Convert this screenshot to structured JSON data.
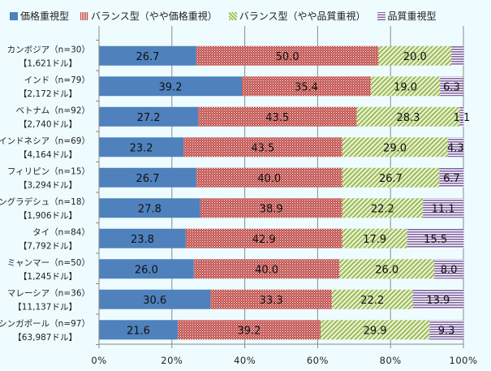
{
  "chart_data": {
    "type": "bar",
    "orientation": "horizontal",
    "stacked": "100%",
    "title": "",
    "xlabel": "",
    "ylabel": "",
    "xlim": [
      0,
      100
    ],
    "x_ticks": [
      "0%",
      "20%",
      "40%",
      "60%",
      "80%",
      "100%"
    ],
    "grid": "vertical",
    "legend_position": "top",
    "categories": [
      {
        "name": "カンボジア（n=30）",
        "sub": "【1,621ドル】"
      },
      {
        "name": "インド（n=79）",
        "sub": "【2,172ドル】"
      },
      {
        "name": "ベトナム（n=92）",
        "sub": "【2,740ドル】"
      },
      {
        "name": "インドネシア（n=69）",
        "sub": "【4,164ドル】"
      },
      {
        "name": "フィリピン（n=15）",
        "sub": "【3,294ドル】"
      },
      {
        "name": "バングラデシュ（n=18）",
        "sub": "【1,906ドル】"
      },
      {
        "name": "タイ（n=84）",
        "sub": "【7,792ドル】"
      },
      {
        "name": "ミャンマー（n=50）",
        "sub": "【1,245ドル】"
      },
      {
        "name": "マレーシア（n=36）",
        "sub": "【11,137ドル】"
      },
      {
        "name": "シンガポール（n=97）",
        "sub": "【63,987ドル】"
      }
    ],
    "series": [
      {
        "name": "価格重視型",
        "color": "#4f81bd",
        "pattern": "solid",
        "values": [
          26.7,
          39.2,
          27.2,
          23.2,
          26.7,
          27.8,
          23.8,
          26.0,
          30.6,
          21.6
        ],
        "labels": [
          "26.7",
          "39.2",
          "27.2",
          "23.2",
          "26.7",
          "27.8",
          "23.8",
          "26.0",
          "30.6",
          "21.6"
        ]
      },
      {
        "name": "バランス型（やや価格重視）",
        "color": "#c0504d",
        "pattern": "dots",
        "values": [
          50.0,
          35.4,
          43.5,
          43.5,
          40.0,
          38.9,
          42.9,
          40.0,
          33.3,
          39.2
        ],
        "labels": [
          "50.0",
          "35.4",
          "43.5",
          "43.5",
          "40.0",
          "38.9",
          "42.9",
          "40.0",
          "33.3",
          "39.2"
        ]
      },
      {
        "name": "バランス型（やや品質重視）",
        "color": "#9bbb59",
        "pattern": "diagonal",
        "values": [
          20.0,
          19.0,
          28.3,
          29.0,
          26.7,
          22.2,
          17.9,
          26.0,
          22.2,
          29.9
        ],
        "labels": [
          "20.0",
          "19.0",
          "28.3",
          "29.0",
          "26.7",
          "22.2",
          "17.9",
          "26.0",
          "22.2",
          "29.9"
        ]
      },
      {
        "name": "品質重視型",
        "color": "#8064a2",
        "pattern": "horizontal",
        "values": [
          3.3,
          6.3,
          1.1,
          4.3,
          6.7,
          11.1,
          15.5,
          8.0,
          13.9,
          9.3
        ],
        "labels": [
          "",
          "6.3",
          "1.1",
          "4.3",
          "6.7",
          "11.1",
          "15.5",
          "8.0",
          "13.9",
          "9.3"
        ]
      }
    ]
  }
}
